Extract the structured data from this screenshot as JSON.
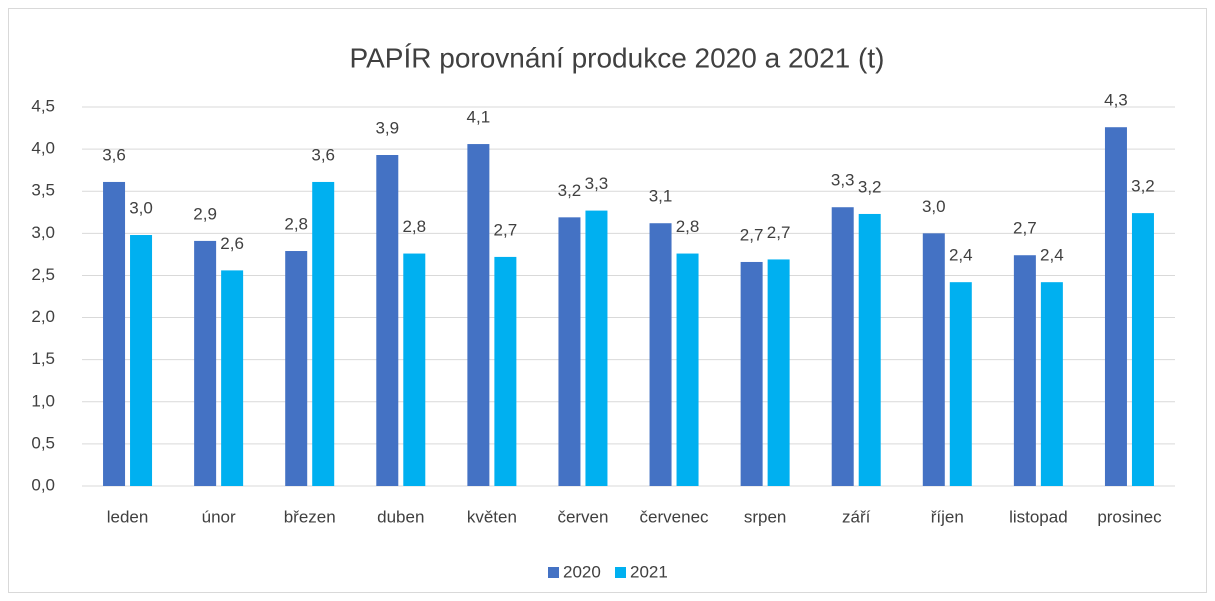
{
  "chart_data": {
    "type": "bar",
    "title": "PAPÍR porovnání produkce 2020 a 2021 (t)",
    "categories": [
      "leden",
      "únor",
      "březen",
      "duben",
      "květen",
      "červen",
      "červenec",
      "srpen",
      "září",
      "říjen",
      "listopad",
      "prosinec"
    ],
    "series": [
      {
        "name": "2020",
        "color": "#4472c4",
        "values": [
          3.61,
          2.91,
          2.79,
          3.93,
          4.06,
          3.19,
          3.12,
          2.66,
          3.31,
          3.0,
          2.74,
          4.26
        ],
        "value_labels": [
          "3,6",
          "2,9",
          "2,8",
          "3,9",
          "4,1",
          "3,2",
          "3,1",
          "2,7",
          "3,3",
          "3,0",
          "2,7",
          "4,3"
        ]
      },
      {
        "name": "2021",
        "color": "#00b0f0",
        "values": [
          2.98,
          2.56,
          3.61,
          2.76,
          2.72,
          3.27,
          2.76,
          2.69,
          3.23,
          2.42,
          2.42,
          3.24
        ],
        "value_labels": [
          "3,0",
          "2,6",
          "3,6",
          "2,8",
          "2,7",
          "3,3",
          "2,8",
          "2,7",
          "3,2",
          "2,4",
          "2,4",
          "3,2"
        ]
      }
    ],
    "ylim": [
      0,
      4.5
    ],
    "yticks": [
      {
        "value": 0,
        "label": "0,0"
      },
      {
        "value": 0.5,
        "label": "0,5"
      },
      {
        "value": 1,
        "label": "1,0"
      },
      {
        "value": 1.5,
        "label": "1,5"
      },
      {
        "value": 2,
        "label": "2,0"
      },
      {
        "value": 2.5,
        "label": "2,5"
      },
      {
        "value": 3,
        "label": "3,0"
      },
      {
        "value": 3.5,
        "label": "3,5"
      },
      {
        "value": 4,
        "label": "4,0"
      },
      {
        "value": 4.5,
        "label": "4,5"
      }
    ],
    "grid": true,
    "legend": "bottom"
  }
}
